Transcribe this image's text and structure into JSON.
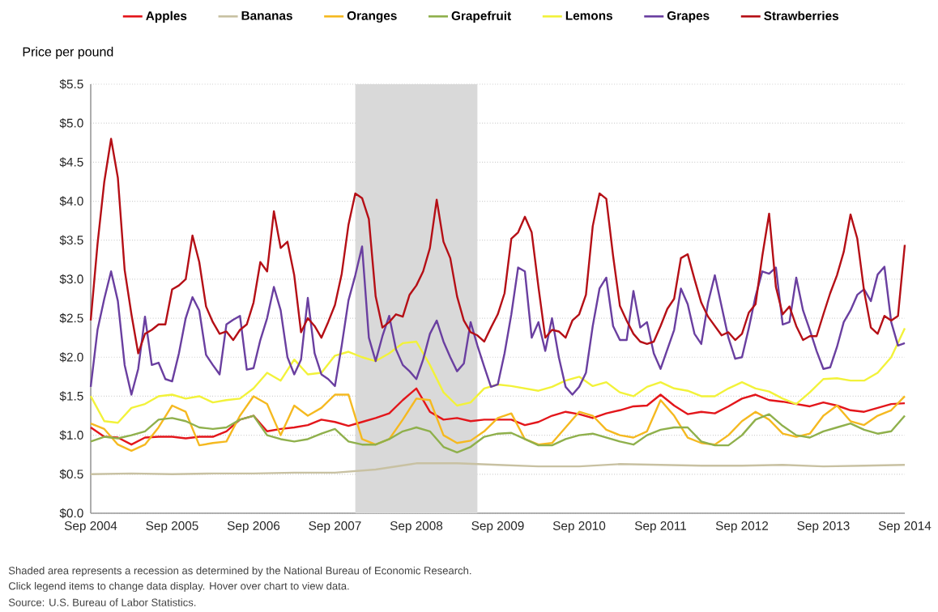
{
  "chart_data": {
    "type": "line",
    "ylabel": "Price per pound",
    "annotations": [
      "Shaded area represents a recession as determined by the National Bureau of Economic Research.",
      "Click legend items to change data display. Hover over chart to view data.",
      "Source: U.S. Bureau of Labor Statistics."
    ],
    "x": [
      "2004-09",
      "2004-10",
      "2004-11",
      "2004-12",
      "2005-01",
      "2005-02",
      "2005-03",
      "2005-04",
      "2005-05",
      "2005-06",
      "2005-07",
      "2005-08",
      "2005-09",
      "2005-10",
      "2005-11",
      "2005-12",
      "2006-01",
      "2006-02",
      "2006-03",
      "2006-04",
      "2006-05",
      "2006-06",
      "2006-07",
      "2006-08",
      "2006-09",
      "2006-10",
      "2006-11",
      "2006-12",
      "2007-01",
      "2007-02",
      "2007-03",
      "2007-04",
      "2007-05",
      "2007-06",
      "2007-07",
      "2007-08",
      "2007-09",
      "2007-10",
      "2007-11",
      "2007-12",
      "2008-01",
      "2008-02",
      "2008-03",
      "2008-04",
      "2008-05",
      "2008-06",
      "2008-07",
      "2008-08",
      "2008-09",
      "2008-10",
      "2008-11",
      "2008-12",
      "2009-01",
      "2009-02",
      "2009-03",
      "2009-04",
      "2009-05",
      "2009-06",
      "2009-07",
      "2009-08",
      "2009-09",
      "2009-10",
      "2009-11",
      "2009-12",
      "2010-01",
      "2010-02",
      "2010-03",
      "2010-04",
      "2010-05",
      "2010-06",
      "2010-07",
      "2010-08",
      "2010-09",
      "2010-10",
      "2010-11",
      "2010-12",
      "2011-01",
      "2011-02",
      "2011-03",
      "2011-04",
      "2011-05",
      "2011-06",
      "2011-07",
      "2011-08",
      "2011-09",
      "2011-10",
      "2011-11",
      "2011-12",
      "2012-01",
      "2012-02",
      "2012-03",
      "2012-04",
      "2012-05",
      "2012-06",
      "2012-07",
      "2012-08",
      "2012-09",
      "2012-10",
      "2012-11",
      "2012-12",
      "2013-01",
      "2013-02",
      "2013-03",
      "2013-04",
      "2013-05",
      "2013-06",
      "2013-07",
      "2013-08",
      "2013-09",
      "2013-10",
      "2013-11",
      "2013-12",
      "2014-01",
      "2014-02",
      "2014-03",
      "2014-04",
      "2014-05",
      "2014-06",
      "2014-07",
      "2014-08",
      "2014-09"
    ],
    "series": [
      {
        "name": "Apples",
        "color": "#e3161b",
        "x": [
          "2004-09",
          "2004-11",
          "2005-01",
          "2005-03",
          "2005-05",
          "2005-07",
          "2005-09",
          "2005-11",
          "2006-01",
          "2006-03",
          "2006-05",
          "2006-07",
          "2006-09",
          "2006-11",
          "2007-01",
          "2007-03",
          "2007-05",
          "2007-07",
          "2007-09",
          "2007-11",
          "2008-01",
          "2008-03",
          "2008-05",
          "2008-07",
          "2008-09",
          "2008-11",
          "2009-01",
          "2009-03",
          "2009-05",
          "2009-07",
          "2009-09",
          "2009-11",
          "2010-01",
          "2010-03",
          "2010-05",
          "2010-07",
          "2010-09",
          "2010-11",
          "2011-01",
          "2011-03",
          "2011-05",
          "2011-07",
          "2011-09",
          "2011-11",
          "2012-01",
          "2012-03",
          "2012-05",
          "2012-07",
          "2012-09",
          "2012-11",
          "2013-01",
          "2013-03",
          "2013-05",
          "2013-07",
          "2013-09",
          "2013-11",
          "2014-01",
          "2014-03",
          "2014-05",
          "2014-07",
          "2014-09"
        ],
        "values": [
          1.1,
          0.98,
          0.97,
          0.88,
          0.97,
          0.98,
          0.98,
          0.96,
          0.98,
          0.98,
          1.05,
          1.2,
          1.25,
          1.05,
          1.08,
          1.1,
          1.13,
          1.2,
          1.17,
          1.12,
          1.17,
          1.22,
          1.28,
          1.45,
          1.6,
          1.3,
          1.2,
          1.22,
          1.18,
          1.2,
          1.2,
          1.2,
          1.13,
          1.17,
          1.25,
          1.3,
          1.27,
          1.22,
          1.28,
          1.32,
          1.37,
          1.38,
          1.52,
          1.38,
          1.27,
          1.3,
          1.28,
          1.37,
          1.47,
          1.52,
          1.45,
          1.43,
          1.4,
          1.37,
          1.42,
          1.38,
          1.32,
          1.3,
          1.35,
          1.4,
          1.41
        ]
      },
      {
        "name": "Bananas",
        "color": "#c8c1a2",
        "x": [
          "2004-09",
          "2005-03",
          "2005-09",
          "2006-03",
          "2006-09",
          "2007-03",
          "2007-09",
          "2008-03",
          "2008-09",
          "2009-03",
          "2009-09",
          "2010-03",
          "2010-09",
          "2011-03",
          "2011-09",
          "2012-03",
          "2012-09",
          "2013-03",
          "2013-09",
          "2014-03",
          "2014-09"
        ],
        "values": [
          0.5,
          0.51,
          0.5,
          0.51,
          0.51,
          0.52,
          0.52,
          0.56,
          0.64,
          0.64,
          0.62,
          0.6,
          0.6,
          0.63,
          0.62,
          0.61,
          0.61,
          0.62,
          0.6,
          0.61,
          0.62
        ]
      },
      {
        "name": "Oranges",
        "color": "#f5b920",
        "x": [
          "2004-09",
          "2004-11",
          "2005-01",
          "2005-03",
          "2005-05",
          "2005-07",
          "2005-09",
          "2005-11",
          "2006-01",
          "2006-03",
          "2006-05",
          "2006-07",
          "2006-09",
          "2006-11",
          "2007-01",
          "2007-03",
          "2007-05",
          "2007-07",
          "2007-09",
          "2007-11",
          "2008-01",
          "2008-03",
          "2008-05",
          "2008-07",
          "2008-09",
          "2008-11",
          "2009-01",
          "2009-03",
          "2009-05",
          "2009-07",
          "2009-09",
          "2009-11",
          "2010-01",
          "2010-03",
          "2010-05",
          "2010-07",
          "2010-09",
          "2010-11",
          "2011-01",
          "2011-03",
          "2011-05",
          "2011-07",
          "2011-09",
          "2011-11",
          "2012-01",
          "2012-03",
          "2012-05",
          "2012-07",
          "2012-09",
          "2012-11",
          "2013-01",
          "2013-03",
          "2013-05",
          "2013-07",
          "2013-09",
          "2013-11",
          "2014-01",
          "2014-03",
          "2014-05",
          "2014-07",
          "2014-09"
        ],
        "values": [
          1.15,
          1.08,
          0.88,
          0.8,
          0.88,
          1.1,
          1.38,
          1.3,
          0.87,
          0.9,
          0.92,
          1.25,
          1.5,
          1.4,
          1.0,
          1.38,
          1.25,
          1.35,
          1.52,
          1.52,
          0.95,
          0.88,
          0.95,
          1.2,
          1.47,
          1.45,
          1.0,
          0.9,
          0.93,
          1.05,
          1.22,
          1.28,
          0.95,
          0.88,
          0.9,
          1.1,
          1.3,
          1.25,
          1.07,
          1.0,
          0.97,
          1.05,
          1.45,
          1.25,
          0.97,
          0.9,
          0.88,
          1.0,
          1.18,
          1.3,
          1.2,
          1.02,
          0.98,
          1.02,
          1.25,
          1.38,
          1.18,
          1.13,
          1.25,
          1.32,
          1.5
        ]
      },
      {
        "name": "Grapefruit",
        "color": "#8fb04c",
        "x": [
          "2004-09",
          "2004-11",
          "2005-01",
          "2005-03",
          "2005-05",
          "2005-07",
          "2005-09",
          "2005-11",
          "2006-01",
          "2006-03",
          "2006-05",
          "2006-07",
          "2006-09",
          "2006-11",
          "2007-01",
          "2007-03",
          "2007-05",
          "2007-07",
          "2007-09",
          "2007-11",
          "2008-01",
          "2008-03",
          "2008-05",
          "2008-07",
          "2008-09",
          "2008-11",
          "2009-01",
          "2009-03",
          "2009-05",
          "2009-07",
          "2009-09",
          "2009-11",
          "2010-01",
          "2010-03",
          "2010-05",
          "2010-07",
          "2010-09",
          "2010-11",
          "2011-01",
          "2011-03",
          "2011-05",
          "2011-07",
          "2011-09",
          "2011-11",
          "2012-01",
          "2012-03",
          "2012-05",
          "2012-07",
          "2012-09",
          "2012-11",
          "2013-01",
          "2013-03",
          "2013-05",
          "2013-07",
          "2013-09",
          "2013-11",
          "2014-01",
          "2014-03",
          "2014-05",
          "2014-07",
          "2014-09"
        ],
        "values": [
          0.92,
          0.98,
          0.96,
          1.0,
          1.05,
          1.2,
          1.22,
          1.18,
          1.1,
          1.08,
          1.1,
          1.2,
          1.25,
          1.0,
          0.95,
          0.92,
          0.95,
          1.02,
          1.08,
          0.92,
          0.88,
          0.88,
          0.95,
          1.05,
          1.1,
          1.05,
          0.85,
          0.78,
          0.85,
          0.98,
          1.02,
          1.03,
          0.95,
          0.87,
          0.87,
          0.95,
          1.0,
          1.02,
          0.97,
          0.92,
          0.88,
          1.0,
          1.07,
          1.1,
          1.1,
          0.92,
          0.87,
          0.87,
          1.0,
          1.2,
          1.27,
          1.12,
          1.0,
          0.97,
          1.05,
          1.1,
          1.15,
          1.07,
          1.02,
          1.05,
          1.25
        ]
      },
      {
        "name": "Lemons",
        "color": "#f2f23a",
        "x": [
          "2004-09",
          "2004-11",
          "2005-01",
          "2005-03",
          "2005-05",
          "2005-07",
          "2005-09",
          "2005-11",
          "2006-01",
          "2006-03",
          "2006-05",
          "2006-07",
          "2006-09",
          "2006-11",
          "2007-01",
          "2007-03",
          "2007-05",
          "2007-07",
          "2007-09",
          "2007-11",
          "2008-01",
          "2008-03",
          "2008-05",
          "2008-07",
          "2008-09",
          "2008-11",
          "2009-01",
          "2009-03",
          "2009-05",
          "2009-07",
          "2009-09",
          "2009-11",
          "2010-01",
          "2010-03",
          "2010-05",
          "2010-07",
          "2010-09",
          "2010-11",
          "2011-01",
          "2011-03",
          "2011-05",
          "2011-07",
          "2011-09",
          "2011-11",
          "2012-01",
          "2012-03",
          "2012-05",
          "2012-07",
          "2012-09",
          "2012-11",
          "2013-01",
          "2013-03",
          "2013-05",
          "2013-07",
          "2013-09",
          "2013-11",
          "2014-01",
          "2014-03",
          "2014-05",
          "2014-07",
          "2014-09"
        ],
        "values": [
          1.5,
          1.18,
          1.16,
          1.35,
          1.4,
          1.5,
          1.52,
          1.47,
          1.5,
          1.42,
          1.45,
          1.47,
          1.6,
          1.8,
          1.7,
          1.97,
          1.78,
          1.8,
          2.02,
          2.07,
          2.0,
          1.95,
          2.05,
          2.18,
          2.2,
          1.9,
          1.55,
          1.38,
          1.42,
          1.6,
          1.65,
          1.63,
          1.6,
          1.57,
          1.62,
          1.7,
          1.75,
          1.63,
          1.68,
          1.55,
          1.5,
          1.62,
          1.68,
          1.6,
          1.57,
          1.5,
          1.5,
          1.6,
          1.68,
          1.6,
          1.56,
          1.47,
          1.4,
          1.55,
          1.72,
          1.73,
          1.7,
          1.7,
          1.8,
          2.0,
          2.37
        ]
      },
      {
        "name": "Grapes",
        "color": "#6a3fa0",
        "values": [
          1.62,
          2.35,
          2.75,
          3.1,
          2.72,
          1.9,
          1.52,
          1.85,
          2.52,
          1.9,
          1.93,
          1.72,
          1.69,
          2.05,
          2.5,
          2.77,
          2.6,
          2.03,
          1.9,
          1.78,
          2.42,
          2.48,
          2.53,
          1.84,
          1.86,
          2.22,
          2.5,
          2.9,
          2.6,
          2.0,
          1.78,
          1.97,
          2.76,
          2.05,
          1.78,
          1.72,
          1.63,
          2.15,
          2.73,
          3.05,
          3.42,
          2.25,
          1.95,
          2.27,
          2.53,
          2.1,
          1.9,
          1.82,
          1.72,
          1.97,
          2.3,
          2.47,
          2.2,
          2.0,
          1.82,
          1.92,
          2.45,
          2.15,
          1.88,
          1.62,
          1.65,
          2.05,
          2.55,
          3.15,
          3.1,
          2.25,
          2.45,
          2.08,
          2.5,
          2.0,
          1.62,
          1.52,
          1.62,
          1.8,
          2.4,
          2.88,
          3.02,
          2.4,
          2.22,
          2.22,
          2.85,
          2.38,
          2.45,
          2.05,
          1.85,
          2.1,
          2.35,
          2.88,
          2.68,
          2.3,
          2.17,
          2.7,
          3.05,
          2.65,
          2.25,
          1.98,
          2.0,
          2.37,
          2.78,
          3.1,
          3.07,
          3.15,
          2.42,
          2.45,
          3.02,
          2.6,
          2.35,
          2.08,
          1.85,
          1.87,
          2.13,
          2.45,
          2.6,
          2.8,
          2.87,
          2.72,
          3.06,
          3.16,
          2.45,
          2.15,
          2.18
        ]
      },
      {
        "name": "Strawberries",
        "color": "#b50f16",
        "values": [
          2.47,
          3.45,
          4.25,
          4.8,
          4.3,
          3.12,
          2.55,
          2.05,
          2.3,
          2.35,
          2.42,
          2.42,
          2.87,
          2.92,
          3.0,
          3.56,
          3.22,
          2.65,
          2.45,
          2.3,
          2.33,
          2.22,
          2.35,
          2.42,
          2.7,
          3.22,
          3.1,
          3.87,
          3.4,
          3.48,
          3.05,
          2.32,
          2.5,
          2.4,
          2.25,
          2.45,
          2.67,
          3.07,
          3.7,
          4.1,
          4.04,
          3.77,
          2.78,
          2.38,
          2.45,
          2.55,
          2.52,
          2.8,
          2.92,
          3.1,
          3.4,
          4.02,
          3.48,
          3.27,
          2.78,
          2.47,
          2.32,
          2.28,
          2.2,
          2.38,
          2.55,
          2.82,
          3.52,
          3.6,
          3.8,
          3.6,
          2.9,
          2.25,
          2.35,
          2.33,
          2.25,
          2.47,
          2.55,
          2.8,
          3.68,
          4.1,
          4.03,
          3.3,
          2.66,
          2.47,
          2.3,
          2.2,
          2.17,
          2.2,
          2.4,
          2.62,
          2.75,
          3.27,
          3.32,
          3.0,
          2.7,
          2.52,
          2.4,
          2.28,
          2.32,
          2.22,
          2.3,
          2.57,
          2.68,
          3.3,
          3.84,
          2.9,
          2.55,
          2.65,
          2.4,
          2.22,
          2.27,
          2.27,
          2.55,
          2.82,
          3.05,
          3.35,
          3.83,
          3.52,
          2.85,
          2.38,
          2.3,
          2.53,
          2.47,
          2.53,
          3.44
        ]
      }
    ],
    "xlim": [
      "2004-09",
      "2014-09"
    ],
    "xticks": [
      {
        "value": "2004-09",
        "label": "Sep 2004"
      },
      {
        "value": "2005-09",
        "label": "Sep 2005"
      },
      {
        "value": "2006-09",
        "label": "Sep 2006"
      },
      {
        "value": "2007-09",
        "label": "Sep 2007"
      },
      {
        "value": "2008-09",
        "label": "Sep 2008"
      },
      {
        "value": "2009-09",
        "label": "Sep 2009"
      },
      {
        "value": "2010-09",
        "label": "Sep 2010"
      },
      {
        "value": "2011-09",
        "label": "Sep 2011"
      },
      {
        "value": "2012-09",
        "label": "Sep 2012"
      },
      {
        "value": "2013-09",
        "label": "Sep 2013"
      },
      {
        "value": "2014-09",
        "label": "Sep 2014"
      }
    ],
    "ylim": [
      0,
      5.5
    ],
    "yticks": [
      {
        "value": 0,
        "label": "$0.0"
      },
      {
        "value": 0.5,
        "label": "$0.5"
      },
      {
        "value": 1,
        "label": "$1.0"
      },
      {
        "value": 1.5,
        "label": "$1.5"
      },
      {
        "value": 2,
        "label": "$2.0"
      },
      {
        "value": 2.5,
        "label": "$2.5"
      },
      {
        "value": 3,
        "label": "$3.0"
      },
      {
        "value": 3.5,
        "label": "$3.5"
      },
      {
        "value": 4,
        "label": "$4.0"
      },
      {
        "value": 4.5,
        "label": "$4.5"
      },
      {
        "value": 5,
        "label": "$5.0"
      },
      {
        "value": 5.5,
        "label": "$5.5"
      }
    ],
    "grid": "y",
    "legend": "top",
    "bands": [
      {
        "axis": "x",
        "from": "2007-12",
        "to": "2009-06",
        "color": "#d9d9d9"
      }
    ]
  }
}
